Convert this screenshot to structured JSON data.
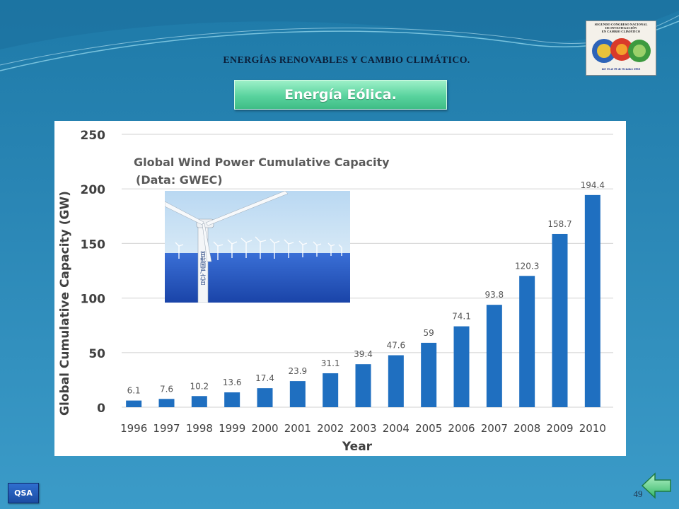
{
  "slide": {
    "header_title": "ENERGÍAS RENOVABLES Y CAMBIO CLIMÁTICO.",
    "subtitle": "Energía Eólica.",
    "page_number": "49",
    "qsa_label": "QSA",
    "logo": {
      "line1": "SEGUNDO CONGRESO NACIONAL",
      "line2": "DE INVESTIGACIÓN",
      "line3": "EN CAMBIO CLIMÁTICO",
      "date": "del 15 al 19 de Octubre 2012"
    },
    "photo_tower_text": "首批国产六百"
  },
  "colors": {
    "bar": "#1f6fc0",
    "gridline": "#d9d9d9",
    "axis_text": "#404040",
    "title_text": "#5a5a5a"
  },
  "chart_data": {
    "type": "bar",
    "title_line1": "Global Wind Power Cumulative Capacity",
    "title_line2": "(Data: GWEC)",
    "xlabel": "Year",
    "ylabel": "Global Cumulative Capacity (GW)",
    "ylim": [
      0,
      250
    ],
    "yticks": [
      "0",
      "50",
      "100",
      "150",
      "200",
      "250"
    ],
    "grid": true,
    "categories": [
      "1996",
      "1997",
      "1998",
      "1999",
      "2000",
      "2001",
      "2002",
      "2003",
      "2004",
      "2005",
      "2006",
      "2007",
      "2008",
      "2009",
      "2010"
    ],
    "values": [
      6.1,
      7.6,
      10.2,
      13.6,
      17.4,
      23.9,
      31.1,
      39.4,
      47.6,
      59,
      74.1,
      93.8,
      120.3,
      158.7,
      194.4
    ],
    "data_labels": [
      "6.1",
      "7.6",
      "10.2",
      "13.6",
      "17.4",
      "23.9",
      "31.1",
      "39.4",
      "47.6",
      "59",
      "74.1",
      "93.8",
      "120.3",
      "158.7",
      "194.4"
    ]
  }
}
